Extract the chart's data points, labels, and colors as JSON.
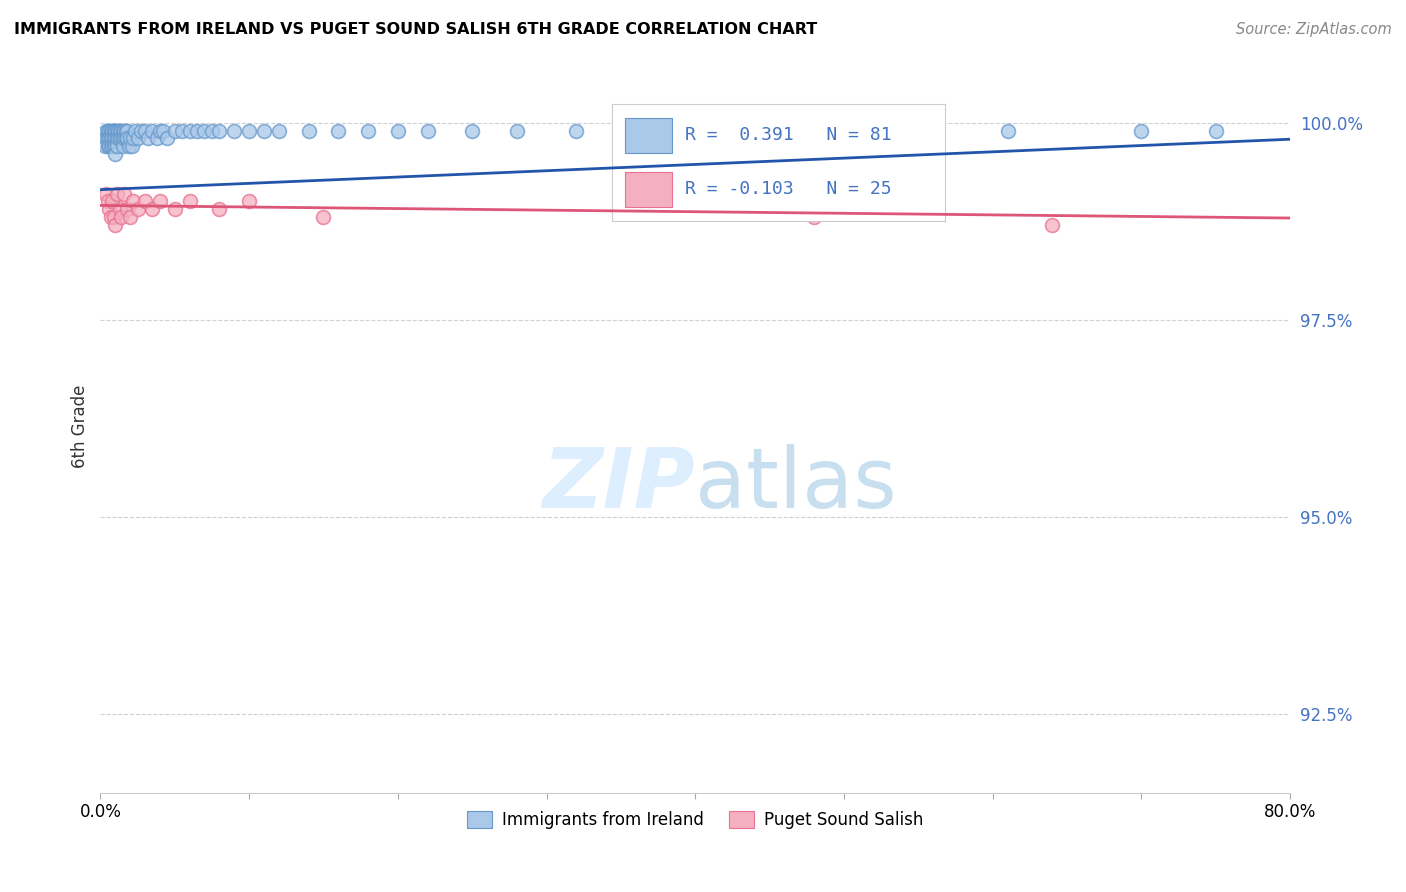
{
  "title": "IMMIGRANTS FROM IRELAND VS PUGET SOUND SALISH 6TH GRADE CORRELATION CHART",
  "source": "Source: ZipAtlas.com",
  "ylabel": "6th Grade",
  "ytick_labels": [
    "92.5%",
    "95.0%",
    "97.5%",
    "100.0%"
  ],
  "ytick_values": [
    0.925,
    0.95,
    0.975,
    1.0
  ],
  "xmin": 0.0,
  "xmax": 0.8,
  "ymin": 0.915,
  "ymax": 1.008,
  "blue_R": 0.391,
  "blue_N": 81,
  "pink_R": -0.103,
  "pink_N": 25,
  "blue_color": "#aac8e8",
  "pink_color": "#f4afc0",
  "blue_edge_color": "#6699cc",
  "pink_edge_color": "#e87090",
  "blue_line_color": "#2255aa",
  "pink_line_color": "#dd5577",
  "watermark_color": "#ddeeff",
  "legend_blue_fill": "#aac8e8",
  "legend_pink_fill": "#f4afc0",
  "blue_scatter_x": [
    0.003,
    0.004,
    0.004,
    0.005,
    0.005,
    0.005,
    0.006,
    0.006,
    0.006,
    0.007,
    0.007,
    0.007,
    0.008,
    0.008,
    0.008,
    0.008,
    0.009,
    0.009,
    0.009,
    0.01,
    0.01,
    0.01,
    0.01,
    0.01,
    0.011,
    0.011,
    0.011,
    0.012,
    0.012,
    0.013,
    0.013,
    0.014,
    0.014,
    0.015,
    0.015,
    0.015,
    0.016,
    0.016,
    0.017,
    0.017,
    0.018,
    0.018,
    0.019,
    0.02,
    0.021,
    0.022,
    0.023,
    0.025,
    0.027,
    0.03,
    0.032,
    0.035,
    0.038,
    0.04,
    0.042,
    0.045,
    0.05,
    0.055,
    0.06,
    0.065,
    0.07,
    0.075,
    0.08,
    0.09,
    0.1,
    0.11,
    0.12,
    0.14,
    0.16,
    0.18,
    0.2,
    0.22,
    0.25,
    0.28,
    0.32,
    0.38,
    0.43,
    0.52,
    0.61,
    0.7,
    0.75
  ],
  "blue_scatter_y": [
    0.997,
    0.999,
    0.998,
    0.999,
    0.998,
    0.997,
    0.999,
    0.998,
    0.997,
    0.999,
    0.998,
    0.997,
    0.999,
    0.999,
    0.998,
    0.997,
    0.999,
    0.998,
    0.997,
    0.999,
    0.999,
    0.998,
    0.997,
    0.996,
    0.999,
    0.998,
    0.997,
    0.999,
    0.998,
    0.999,
    0.998,
    0.999,
    0.998,
    0.999,
    0.998,
    0.997,
    0.999,
    0.998,
    0.999,
    0.998,
    0.999,
    0.998,
    0.997,
    0.998,
    0.997,
    0.998,
    0.999,
    0.998,
    0.999,
    0.999,
    0.998,
    0.999,
    0.998,
    0.999,
    0.999,
    0.998,
    0.999,
    0.999,
    0.999,
    0.999,
    0.999,
    0.999,
    0.999,
    0.999,
    0.999,
    0.999,
    0.999,
    0.999,
    0.999,
    0.999,
    0.999,
    0.999,
    0.999,
    0.999,
    0.999,
    0.999,
    0.999,
    0.999,
    0.999,
    0.999,
    0.999
  ],
  "pink_scatter_x": [
    0.004,
    0.005,
    0.006,
    0.007,
    0.008,
    0.009,
    0.01,
    0.011,
    0.013,
    0.014,
    0.016,
    0.018,
    0.02,
    0.022,
    0.025,
    0.03,
    0.035,
    0.04,
    0.05,
    0.06,
    0.08,
    0.1,
    0.15,
    0.48,
    0.64
  ],
  "pink_scatter_y": [
    0.991,
    0.99,
    0.989,
    0.988,
    0.99,
    0.988,
    0.987,
    0.991,
    0.989,
    0.988,
    0.991,
    0.989,
    0.988,
    0.99,
    0.989,
    0.99,
    0.989,
    0.99,
    0.989,
    0.99,
    0.989,
    0.99,
    0.988,
    0.988,
    0.987
  ]
}
